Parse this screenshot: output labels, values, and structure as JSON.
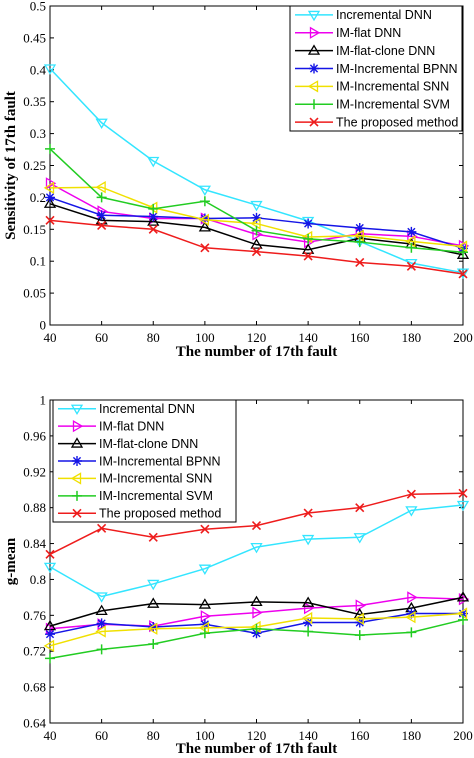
{
  "legend_labels": [
    "Incremental DNN",
    "IM-flat DNN",
    "IM-flat-clone DNN",
    "IM-Incremental BPNN",
    "IM-Incremental SNN",
    "IM-Incremental SVM",
    "The proposed method"
  ],
  "chart_data": [
    {
      "type": "line",
      "xlabel": "The number of 17th fault",
      "ylabel": "Sensitivity of 17th fault",
      "xlim": [
        40,
        200
      ],
      "ylim": [
        0,
        0.5
      ],
      "xticks": [
        40,
        60,
        80,
        100,
        120,
        140,
        160,
        180,
        200
      ],
      "xtick_labels": [
        "40",
        "60",
        "80",
        "100",
        "120",
        "140",
        "160",
        "180",
        "200"
      ],
      "yticks": [
        0,
        0.05,
        0.1,
        0.15,
        0.2,
        0.25,
        0.3,
        0.35,
        0.4,
        0.45,
        0.5
      ],
      "ytick_labels": [
        "0",
        "0.05",
        "0.1",
        "0.15",
        "0.2",
        "0.25",
        "0.3",
        "0.35",
        "0.4",
        "0.45",
        "0.5"
      ],
      "grid": false,
      "legend_position": "top-right",
      "x": [
        40,
        60,
        80,
        100,
        120,
        140,
        160,
        180,
        200
      ],
      "series": [
        {
          "name": "Incremental DNN",
          "color": "#33e5ff",
          "marker": "triangle-down",
          "values": [
            0.402,
            0.317,
            0.257,
            0.212,
            0.188,
            0.163,
            0.131,
            0.097,
            0.082
          ]
        },
        {
          "name": "IM-flat DNN",
          "color": "#ee00ee",
          "marker": "triangle-right",
          "values": [
            0.222,
            0.178,
            0.167,
            0.167,
            0.142,
            0.13,
            0.143,
            0.139,
            0.124
          ]
        },
        {
          "name": "IM-flat-clone DNN",
          "color": "#000000",
          "marker": "triangle-up",
          "values": [
            0.19,
            0.164,
            0.162,
            0.153,
            0.126,
            0.118,
            0.136,
            0.127,
            0.11
          ]
        },
        {
          "name": "IM-Incremental BPNN",
          "color": "#1515e6",
          "marker": "star",
          "values": [
            0.2,
            0.172,
            0.17,
            0.167,
            0.168,
            0.159,
            0.152,
            0.146,
            0.12
          ]
        },
        {
          "name": "IM-Incremental SNN",
          "color": "#f0e000",
          "marker": "triangle-left",
          "values": [
            0.215,
            0.216,
            0.184,
            0.165,
            0.159,
            0.138,
            0.14,
            0.131,
            0.123
          ]
        },
        {
          "name": "IM-Incremental SVM",
          "color": "#22cc22",
          "marker": "plus",
          "values": [
            0.276,
            0.2,
            0.182,
            0.194,
            0.148,
            0.135,
            0.13,
            0.121,
            0.114
          ]
        },
        {
          "name": "The proposed method",
          "color": "#ee1c1c",
          "marker": "x",
          "values": [
            0.164,
            0.156,
            0.15,
            0.121,
            0.115,
            0.108,
            0.098,
            0.092,
            0.08
          ]
        }
      ]
    },
    {
      "type": "line",
      "xlabel": "The number of 17th fault",
      "ylabel": "g-mean",
      "xlim": [
        40,
        200
      ],
      "ylim": [
        0.64,
        1
      ],
      "xticks": [
        40,
        60,
        80,
        100,
        120,
        140,
        160,
        180,
        200
      ],
      "xtick_labels": [
        "40",
        "60",
        "80",
        "100",
        "120",
        "140",
        "160",
        "180",
        "200"
      ],
      "yticks": [
        0.64,
        0.68,
        0.72,
        0.76,
        0.8,
        0.84,
        0.88,
        0.92,
        0.96,
        1
      ],
      "ytick_labels": [
        "0.64",
        "0.68",
        "0.72",
        "0.76",
        "0.8",
        "0.84",
        "0.88",
        "0.92",
        "0.96",
        "1"
      ],
      "grid": false,
      "legend_position": "top-left",
      "x": [
        40,
        60,
        80,
        100,
        120,
        140,
        160,
        180,
        200
      ],
      "series": [
        {
          "name": "Incremental DNN",
          "color": "#33e5ff",
          "marker": "triangle-down",
          "values": [
            0.814,
            0.781,
            0.795,
            0.812,
            0.836,
            0.845,
            0.847,
            0.877,
            0.883
          ]
        },
        {
          "name": "IM-flat DNN",
          "color": "#ee00ee",
          "marker": "triangle-right",
          "values": [
            0.745,
            0.75,
            0.748,
            0.759,
            0.763,
            0.768,
            0.771,
            0.78,
            0.778
          ]
        },
        {
          "name": "IM-flat-clone DNN",
          "color": "#000000",
          "marker": "triangle-up",
          "values": [
            0.748,
            0.765,
            0.773,
            0.772,
            0.775,
            0.774,
            0.761,
            0.768,
            0.78
          ]
        },
        {
          "name": "IM-Incremental BPNN",
          "color": "#1515e6",
          "marker": "star",
          "values": [
            0.739,
            0.751,
            0.747,
            0.75,
            0.74,
            0.752,
            0.752,
            0.762,
            0.762
          ]
        },
        {
          "name": "IM-Incremental SNN",
          "color": "#f0e000",
          "marker": "triangle-left",
          "values": [
            0.726,
            0.742,
            0.745,
            0.746,
            0.747,
            0.757,
            0.756,
            0.758,
            0.762
          ]
        },
        {
          "name": "IM-Incremental SVM",
          "color": "#22cc22",
          "marker": "plus",
          "values": [
            0.712,
            0.722,
            0.728,
            0.74,
            0.745,
            0.742,
            0.738,
            0.741,
            0.755
          ]
        },
        {
          "name": "The proposed method",
          "color": "#ee1c1c",
          "marker": "x",
          "values": [
            0.828,
            0.857,
            0.847,
            0.856,
            0.86,
            0.874,
            0.88,
            0.895,
            0.896
          ]
        }
      ]
    }
  ]
}
